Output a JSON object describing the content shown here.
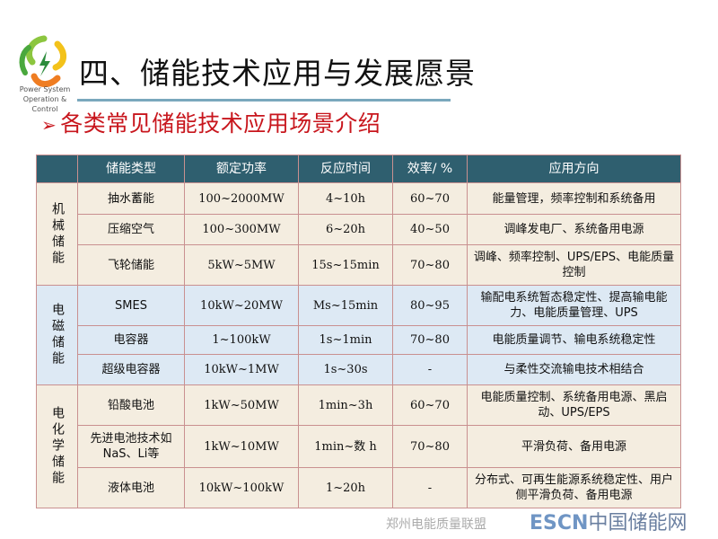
{
  "logo": {
    "line1": "Power System",
    "line2": "Operation & Control"
  },
  "title": "四、储能技术应用与发展愿景",
  "subtitle": "各类常见储能技术应用场景介绍",
  "table": {
    "headers": [
      "",
      "储能类型",
      "额定功率",
      "反应时间",
      "效率/ %",
      "应用方向"
    ],
    "groups": [
      {
        "name": "机械储能",
        "rows": [
          [
            "抽水蓄能",
            "100~2000MW",
            "4~10h",
            "60~70",
            "能量管理，频率控制和系统备用"
          ],
          [
            "压缩空气",
            "100~300MW",
            "6~20h",
            "40~50",
            "调峰发电厂、系统备用电源"
          ],
          [
            "飞轮储能",
            "5kW~5MW",
            "15s~15min",
            "70~80",
            "调峰、频率控制、UPS/EPS、电能质量控制"
          ]
        ]
      },
      {
        "name": "电磁储能",
        "rows": [
          [
            "SMES",
            "10kW~20MW",
            "Ms~15min",
            "80~95",
            "输配电系统暂态稳定性、提高输电能力、电能质量管理、UPS"
          ],
          [
            "电容器",
            "1~100kW",
            "1s~1min",
            "70~80",
            "电能质量调节、输电系统稳定性"
          ],
          [
            "超级电容器",
            "10kW~1MW",
            "1s~30s",
            "-",
            "与柔性交流输电技术相结合"
          ]
        ]
      },
      {
        "name": "电化学储能",
        "rows": [
          [
            "铅酸电池",
            "1kW~50MW",
            "1min~3h",
            "60~70",
            "电能质量控制、系统备用电源、黑启动、UPS/EPS"
          ],
          [
            "先进电池技术如 NaS、Li等",
            "1kW~10MW",
            "1min~数 h",
            "70~80",
            "平滑负荷、备用电源"
          ],
          [
            "液体电池",
            "10kW~100kW",
            "1~20h",
            "-",
            "分布式、可再生能源系统稳定性、用户侧平滑负荷、备用电源"
          ]
        ]
      }
    ]
  },
  "watermark": {
    "line1": "郑州电能质量联盟",
    "brand": "ESCN",
    "brand_cn": "中国储能网"
  },
  "colors": {
    "header": "#2f5f6f",
    "mechanical": "#f4ede0",
    "electromagnetic": "#dde9f4",
    "chemical": "#f4ede0",
    "subtitle": "#c8161d"
  }
}
